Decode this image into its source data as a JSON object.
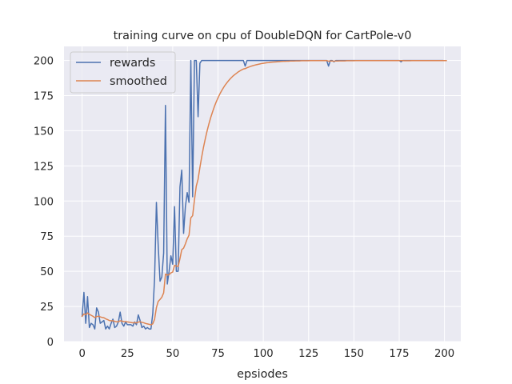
{
  "chart_data": {
    "type": "line",
    "title": "training curve on cpu of DoubleDQN for CartPole-v0",
    "xlabel": "epsiodes",
    "ylabel": "",
    "xlim": [
      -10,
      209
    ],
    "ylim": [
      0,
      210
    ],
    "xticks": [
      0,
      25,
      50,
      75,
      100,
      125,
      150,
      175,
      200
    ],
    "yticks": [
      0,
      25,
      50,
      75,
      100,
      125,
      150,
      175,
      200
    ],
    "grid": true,
    "legend_position": "top-left",
    "series": [
      {
        "name": "rewards",
        "color": "#4c72b0",
        "values": [
          18,
          35,
          13,
          32,
          10,
          13,
          12,
          9,
          24,
          21,
          13,
          14,
          15,
          9,
          11,
          9,
          13,
          16,
          10,
          11,
          14,
          21,
          13,
          11,
          14,
          12,
          12,
          12,
          11,
          14,
          12,
          19,
          15,
          10,
          11,
          9,
          10,
          9,
          9,
          20,
          45,
          99,
          68,
          43,
          46,
          63,
          168,
          41,
          50,
          61,
          55,
          96,
          50,
          50,
          110,
          122,
          77,
          96,
          106,
          99,
          200,
          103,
          200,
          200,
          160,
          198,
          200,
          200,
          200,
          200,
          200,
          200,
          200,
          200,
          200,
          200,
          200,
          200,
          200,
          200,
          200,
          200,
          200,
          200,
          200,
          200,
          200,
          200,
          200,
          200,
          196,
          200,
          200,
          200,
          200,
          200,
          200,
          200,
          200,
          200,
          200,
          200,
          200,
          200,
          200,
          200,
          200,
          200,
          200,
          200,
          200,
          200,
          200,
          200,
          200,
          200,
          200,
          200,
          200,
          200,
          200,
          200,
          200,
          200,
          200,
          200,
          200,
          200,
          200,
          200,
          200,
          200,
          200,
          200,
          200,
          200,
          196,
          200,
          200,
          199,
          200,
          200,
          200,
          200,
          200,
          200,
          200,
          200,
          200,
          200,
          200,
          200,
          200,
          200,
          200,
          200,
          200,
          200,
          200,
          200,
          200,
          200,
          200,
          200,
          200,
          200,
          200,
          200,
          200,
          200,
          200,
          200,
          200,
          200,
          200,
          200,
          199,
          200,
          200,
          200,
          200,
          200,
          200,
          200,
          200,
          200,
          200,
          200,
          200,
          200,
          200,
          200,
          200,
          200,
          200,
          200,
          200,
          200,
          200,
          200
        ]
      },
      {
        "name": "smoothed",
        "color": "#dd8452",
        "values": [
          18,
          19.7,
          19.1,
          20.4,
          19.4,
          18.7,
          18.0,
          17.1,
          17.8,
          18.1,
          17.6,
          17.2,
          17.0,
          16.2,
          15.7,
          15.0,
          14.8,
          14.9,
          14.4,
          14.1,
          14.1,
          14.8,
          14.6,
          14.3,
          14.2,
          14.0,
          13.8,
          13.6,
          13.4,
          13.5,
          13.3,
          13.9,
          14.1,
          13.7,
          13.4,
          12.9,
          12.6,
          12.3,
          11.9,
          12.7,
          15.9,
          24.2,
          28.6,
          30.0,
          31.6,
          34.7,
          48.0,
          47.3,
          47.6,
          48.9,
          49.5,
          54.2,
          53.8,
          53.4,
          59.1,
          65.4,
          66.5,
          69.5,
          73.1,
          75.7,
          88.1,
          89.6,
          100.7,
          110.6,
          115.5,
          123.8,
          131.4,
          138.3,
          144.4,
          150.0,
          155.0,
          159.5,
          163.5,
          167.2,
          170.5,
          173.4,
          176.1,
          178.5,
          180.6,
          182.6,
          184.3,
          185.9,
          187.3,
          188.6,
          189.7,
          190.7,
          191.7,
          192.5,
          193.3,
          193.9,
          194.2,
          194.8,
          195.3,
          195.8,
          196.2,
          196.6,
          196.9,
          197.2,
          197.5,
          197.8,
          198.0,
          198.2,
          198.4,
          198.5,
          198.7,
          198.8,
          198.9,
          199.0,
          199.1,
          199.2,
          199.3,
          199.4,
          199.4,
          199.5,
          199.5,
          199.6,
          199.6,
          199.6,
          199.7,
          199.7,
          199.7,
          199.8,
          199.8,
          199.8,
          199.8,
          199.8,
          199.9,
          199.9,
          199.9,
          199.9,
          199.9,
          199.9,
          199.9,
          199.9,
          199.9,
          199.9,
          199.5,
          199.6,
          199.6,
          199.5,
          199.6,
          199.6,
          199.7,
          199.7,
          199.7,
          199.7,
          199.8,
          199.8,
          199.8,
          199.8,
          199.8,
          199.9,
          199.9,
          199.9,
          199.9,
          199.9,
          199.9,
          199.9,
          199.9,
          199.9,
          199.9,
          199.9,
          199.9,
          199.9,
          199.9,
          199.9,
          199.9,
          199.9,
          199.9,
          199.9,
          199.9,
          199.9,
          199.9,
          199.9,
          199.9,
          199.9,
          199.9,
          199.9,
          199.8,
          199.8,
          199.8,
          199.8,
          199.9,
          199.9,
          199.9,
          199.9,
          199.9,
          199.9,
          199.9,
          199.9,
          199.9,
          199.9,
          199.9,
          199.9,
          199.9,
          199.9,
          199.9,
          199.9,
          199.9,
          199.9,
          199.9,
          199.9
        ]
      }
    ]
  }
}
